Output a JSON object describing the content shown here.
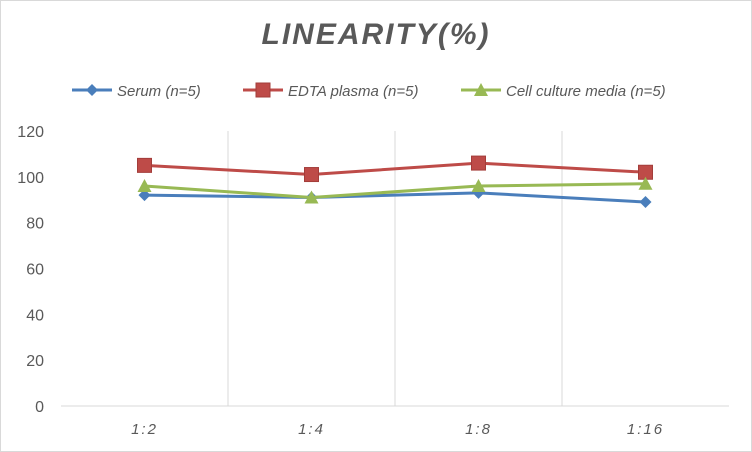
{
  "chart_data": {
    "type": "line",
    "title": "LINEARITY(%)",
    "categories": [
      "1:2",
      "1:4",
      "1:8",
      "1:16"
    ],
    "ylim": [
      0,
      120
    ],
    "yticks": [
      0,
      20,
      40,
      60,
      80,
      100,
      120
    ],
    "grid": "vertical",
    "legend_position": "top",
    "series": [
      {
        "name": "Serum (n=5)",
        "color": "#4a7ebb",
        "marker": "diamond",
        "values": [
          92,
          91,
          93,
          89
        ]
      },
      {
        "name": "EDTA plasma (n=5)",
        "color": "#be4b48",
        "marker": "square",
        "values": [
          105,
          101,
          106,
          102
        ]
      },
      {
        "name": "Cell culture media (n=5)",
        "color": "#98b954",
        "marker": "triangle",
        "values": [
          96,
          91,
          96,
          97
        ]
      }
    ]
  }
}
